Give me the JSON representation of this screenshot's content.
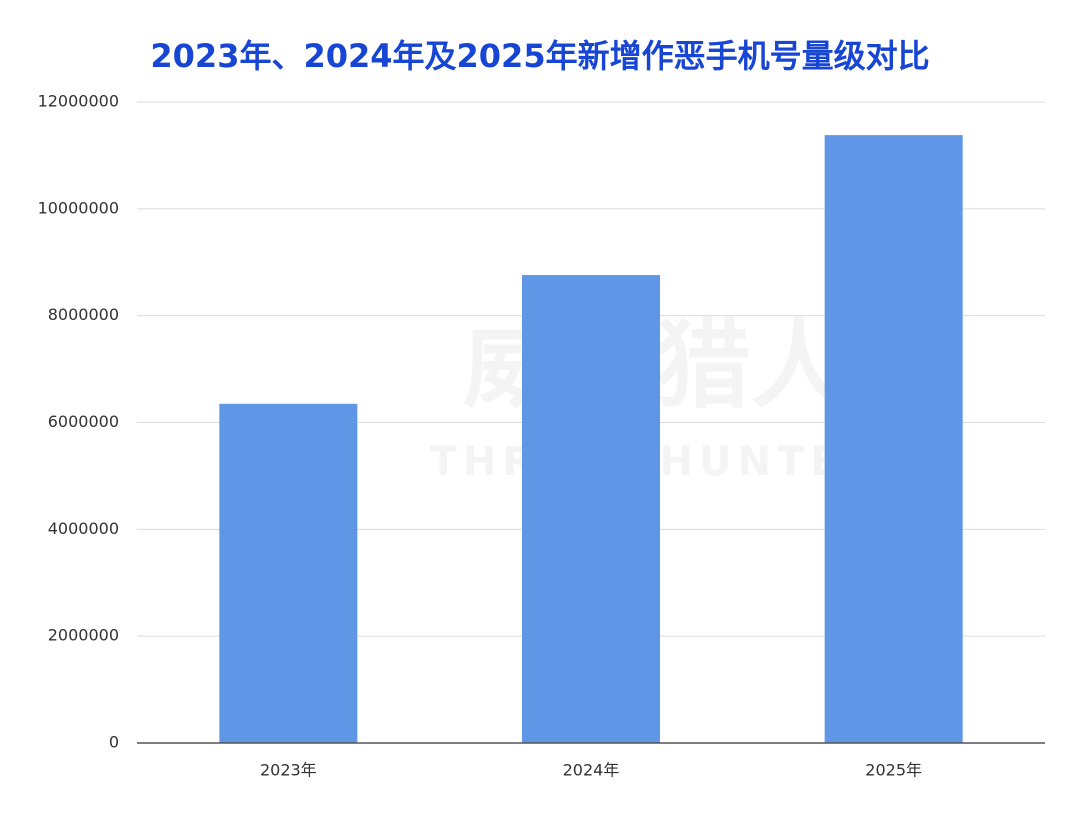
{
  "chart_data": {
    "type": "bar",
    "title": "2023年、2024年及2025年新增作恶手机号量级对比",
    "watermark": "威胁猎人",
    "watermark_en": "THREAT HUNTER",
    "categories": [
      "2023年",
      "2024年",
      "2025年"
    ],
    "values": [
      6350000,
      8760000,
      11380000
    ],
    "color": "#6096e6",
    "ylim": [
      0,
      12000000
    ],
    "yticks": [
      0,
      2000000,
      4000000,
      6000000,
      8000000,
      10000000,
      12000000
    ],
    "grid": true
  }
}
